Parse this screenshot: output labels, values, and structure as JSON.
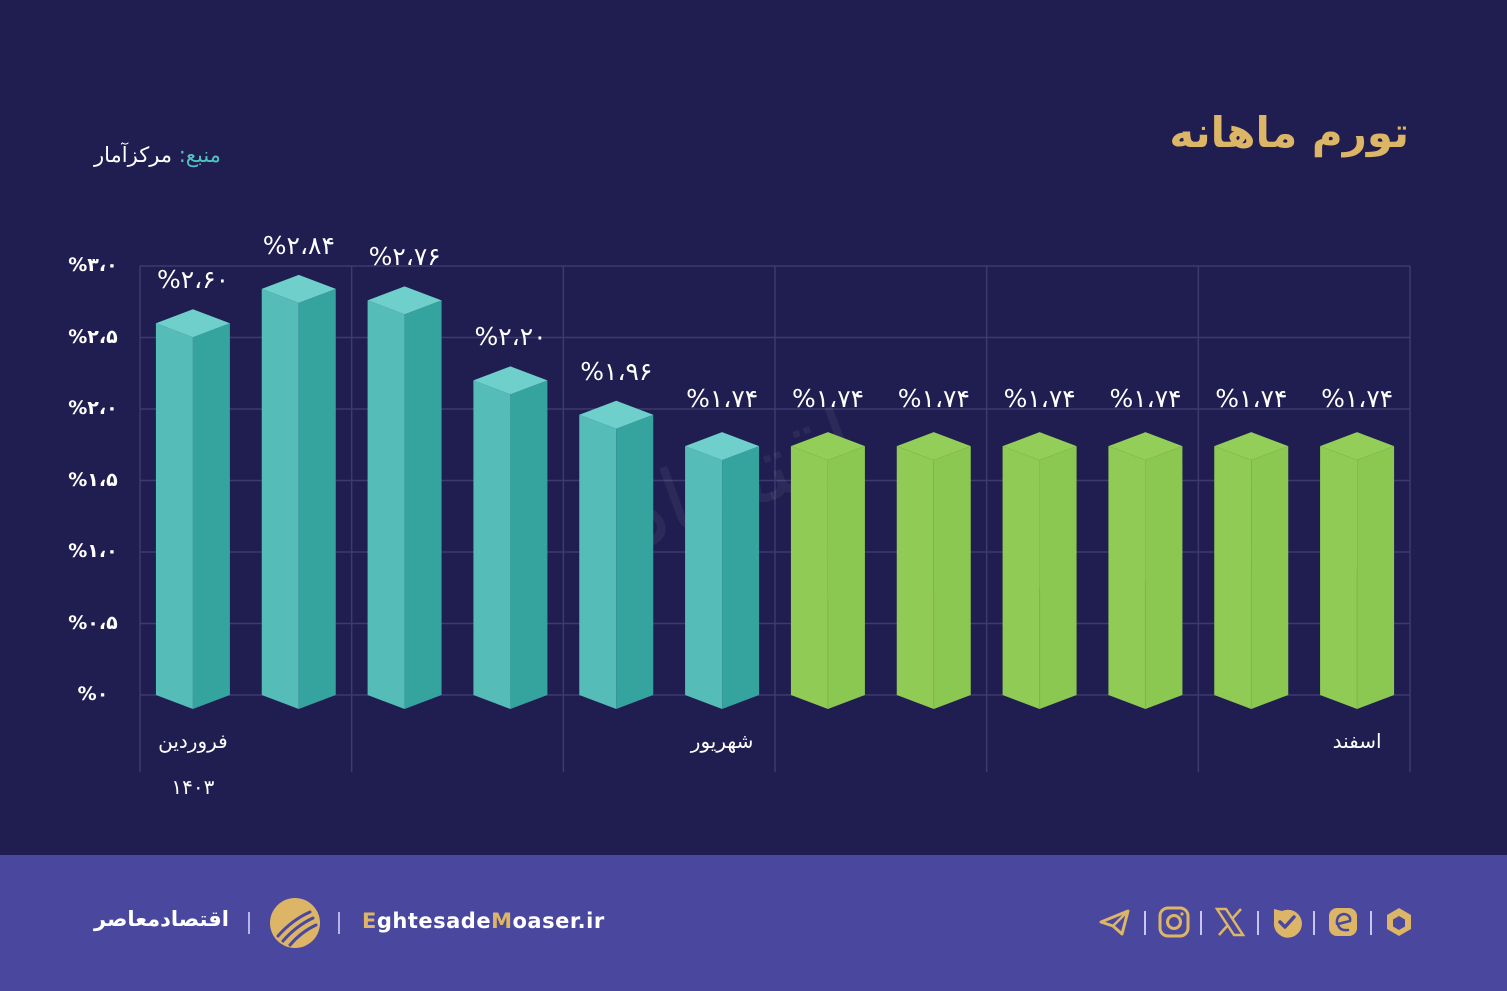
{
  "header": {
    "title": "تورم ماهانه",
    "source_label": "منبع:",
    "source_value": "مرکزآمار"
  },
  "colors": {
    "background": "#201d50",
    "footer": "#4a489e",
    "accent_gold": "#dcb566",
    "bar_actual_front": "#56bcb8",
    "bar_actual_side": "#35a39e",
    "bar_actual_top": "#6fcfca",
    "bar_forecast": "#8fcb55",
    "source_label": "#4fc3bd",
    "gridline": "#3d3a70"
  },
  "chart_data": {
    "type": "bar",
    "title": "تورم ماهانه",
    "source": "منبع: مرکزآمار",
    "xlabel": "",
    "ylabel": "",
    "ylim": [
      0,
      3.0
    ],
    "y_ticks": [
      {
        "value": 3.0,
        "label": "%۳،۰"
      },
      {
        "value": 2.5,
        "label": "%۲،۵"
      },
      {
        "value": 2.0,
        "label": "%۲،۰"
      },
      {
        "value": 1.5,
        "label": "%۱،۵"
      },
      {
        "value": 1.0,
        "label": "%۱،۰"
      },
      {
        "value": 0.5,
        "label": "%۰،۵"
      },
      {
        "value": 0.0,
        "label": "%۰"
      }
    ],
    "grid": true,
    "categories": [
      "فروردین ۱۴۰۳",
      "",
      "",
      "",
      "",
      "شهریور",
      "",
      "",
      "",
      "",
      "",
      "اسفند"
    ],
    "x_labels_visible": [
      {
        "index": 0,
        "line1": "فروردین",
        "line2": "۱۴۰۳"
      },
      {
        "index": 5,
        "line1": "شهریور",
        "line2": ""
      },
      {
        "index": 11,
        "line1": "اسفند",
        "line2": ""
      }
    ],
    "series": [
      {
        "name": "actual",
        "color": "#56bcb8",
        "values": [
          2.6,
          2.84,
          2.76,
          2.2,
          1.96,
          1.74,
          null,
          null,
          null,
          null,
          null,
          null
        ]
      },
      {
        "name": "forecast",
        "color": "#8fcb55",
        "values": [
          null,
          null,
          null,
          null,
          null,
          null,
          1.74,
          1.74,
          1.74,
          1.74,
          1.74,
          1.74
        ]
      }
    ],
    "values": [
      2.6,
      2.84,
      2.76,
      2.2,
      1.96,
      1.74,
      1.74,
      1.74,
      1.74,
      1.74,
      1.74,
      1.74
    ],
    "value_labels": [
      "%۲،۶۰",
      "%۲،۸۴",
      "%۲،۷۶",
      "%۲،۲۰",
      "%۱،۹۶",
      "%۱،۷۴",
      "%۱،۷۴",
      "%۱،۷۴",
      "%۱،۷۴",
      "%۱،۷۴",
      "%۱،۷۴",
      "%۱،۷۴"
    ]
  },
  "footer": {
    "brand_fa": "اقتصادمعاصر",
    "brand_en_parts": [
      "E",
      "ghtesade",
      "M",
      "oaser.ir"
    ],
    "social_icons": [
      "telegram-icon",
      "instagram-icon",
      "x-icon",
      "bale-icon",
      "eitaa-icon",
      "rubika-icon"
    ]
  }
}
